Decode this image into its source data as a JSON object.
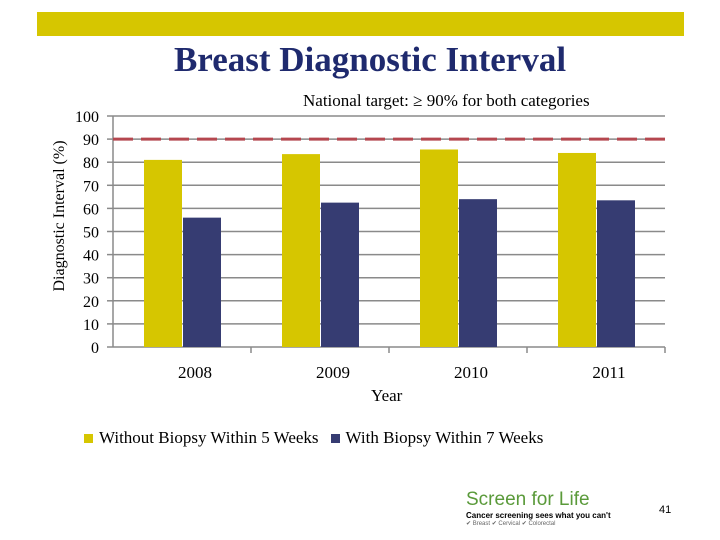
{
  "title": "Breast Diagnostic Interval",
  "page_number": "41",
  "logo": {
    "main": "Screen for Life",
    "tagline": "Cancer screening sees what you can't",
    "categories": [
      "Breast",
      "Cervical",
      "Colorectal"
    ]
  },
  "chart_data": {
    "type": "bar",
    "annotation": "National target: ≥ 90% for both categories",
    "target": 90,
    "categories": [
      "2008",
      "2009",
      "2010",
      "2011"
    ],
    "series": [
      {
        "name": "Without Biopsy Within 5 Weeks",
        "values": [
          81,
          83.5,
          85.5,
          84
        ],
        "color": "#d6c600"
      },
      {
        "name": "With Biopsy Within 7 Weeks",
        "values": [
          56,
          62.5,
          64,
          63.5
        ],
        "color": "#363c72"
      }
    ],
    "xlabel": "Year",
    "ylabel": "Diagnostic Interval (%)",
    "ylim": [
      0,
      100
    ],
    "yticks": [
      "0",
      "10",
      "20",
      "30",
      "40",
      "50",
      "60",
      "70",
      "80",
      "90",
      "100"
    ],
    "grid": true,
    "legend": "bottom",
    "target_color": "#b5474f"
  }
}
